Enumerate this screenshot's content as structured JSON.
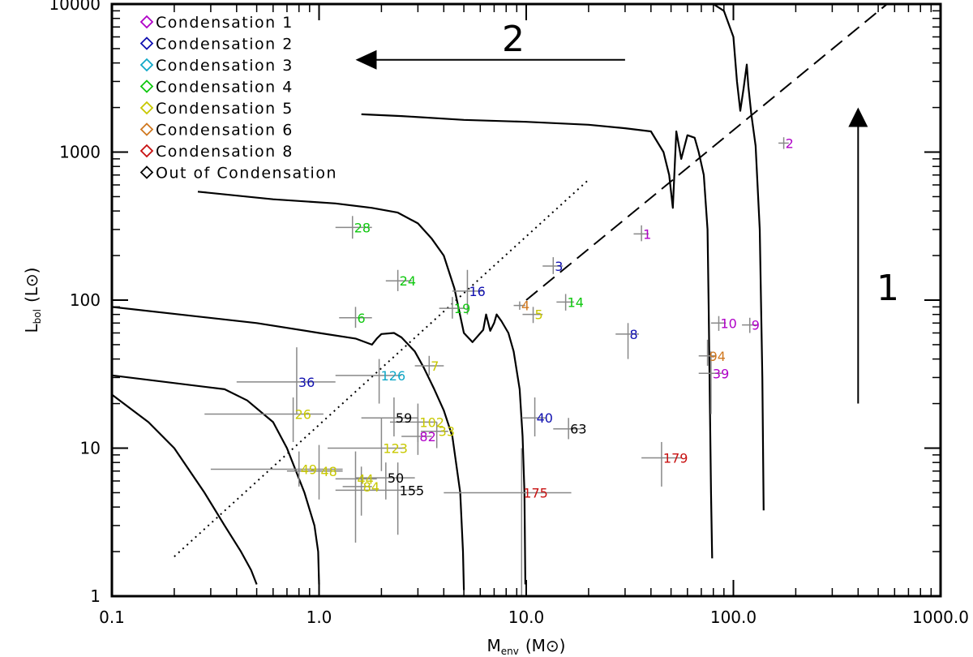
{
  "chart_data": {
    "type": "scatter",
    "title": "",
    "xlabel": {
      "main": "M",
      "sub": "env",
      "unit": "(M⊙)"
    },
    "ylabel": {
      "main": "L",
      "sub": "bol",
      "unit": "(L⊙)"
    },
    "xscale": "log",
    "yscale": "log",
    "xlim": [
      0.1,
      1000
    ],
    "ylim": [
      1,
      10000
    ],
    "x_ticks": [
      {
        "v": 0.1,
        "label": "0.1"
      },
      {
        "v": 1,
        "label": "1.0"
      },
      {
        "v": 10,
        "label": "10.0"
      },
      {
        "v": 100,
        "label": "100.0"
      },
      {
        "v": 1000,
        "label": "1000.0"
      }
    ],
    "y_ticks": [
      {
        "v": 1,
        "label": "1"
      },
      {
        "v": 10,
        "label": "10"
      },
      {
        "v": 100,
        "label": "100"
      },
      {
        "v": 1000,
        "label": "1000"
      },
      {
        "v": 10000,
        "label": "10000"
      }
    ],
    "legend_position": "top-left",
    "legend": [
      {
        "label": "Condensation 1",
        "color": "#b000c8"
      },
      {
        "label": "Condensation 2",
        "color": "#1010b0"
      },
      {
        "label": "Condensation 3",
        "color": "#10a8c8"
      },
      {
        "label": "Condensation 4",
        "color": "#10c810"
      },
      {
        "label": "Condensation 5",
        "color": "#c8c800"
      },
      {
        "label": "Condensation 6",
        "color": "#d07820"
      },
      {
        "label": "Condensation 8",
        "color": "#c81010"
      },
      {
        "label": "Out of Condensation",
        "color": "#000000"
      }
    ],
    "error_bar_color": "#888888",
    "points": [
      {
        "id": "2",
        "group": 0,
        "x": 175,
        "y": 1150,
        "xerr": [
          165,
          185
        ],
        "yerr": [
          1050,
          1260
        ]
      },
      {
        "id": "1",
        "group": 0,
        "x": 36,
        "y": 280,
        "xerr": [
          33,
          39
        ],
        "yerr": [
          250,
          320
        ]
      },
      {
        "id": "10",
        "group": 0,
        "x": 85,
        "y": 70,
        "xerr": [
          78,
          92
        ],
        "yerr": [
          62,
          78
        ]
      },
      {
        "id": "9",
        "group": 0,
        "x": 120,
        "y": 68,
        "xerr": [
          110,
          130
        ],
        "yerr": [
          60,
          76
        ]
      },
      {
        "id": "39",
        "group": 0,
        "x": 78,
        "y": 32,
        "xerr": [
          68,
          88
        ],
        "yerr": [
          17,
          45
        ]
      },
      {
        "id": "82",
        "group": 0,
        "x": 3.0,
        "y": 12,
        "xerr": [
          2.5,
          3.5
        ],
        "yerr": [
          9,
          16
        ]
      },
      {
        "id": "3",
        "group": 1,
        "x": 13.5,
        "y": 170,
        "xerr": [
          12,
          15
        ],
        "yerr": [
          150,
          195
        ]
      },
      {
        "id": "16",
        "group": 1,
        "x": 5.2,
        "y": 115,
        "xerr": [
          4.4,
          6.2
        ],
        "yerr": [
          80,
          160
        ]
      },
      {
        "id": "8",
        "group": 1,
        "x": 31,
        "y": 59,
        "xerr": [
          27,
          35
        ],
        "yerr": [
          40,
          70
        ]
      },
      {
        "id": "36",
        "group": 1,
        "x": 0.78,
        "y": 28,
        "xerr": [
          0.4,
          1.2
        ],
        "yerr": [
          17,
          48
        ]
      },
      {
        "id": "40",
        "group": 1,
        "x": 11,
        "y": 16,
        "xerr": [
          9.5,
          12.5
        ],
        "yerr": [
          12,
          22
        ]
      },
      {
        "id": "126",
        "group": 2,
        "x": 1.95,
        "y": 31,
        "xerr": [
          1.2,
          2.5
        ],
        "yerr": [
          20,
          40
        ]
      },
      {
        "id": "28",
        "group": 3,
        "x": 1.45,
        "y": 310,
        "xerr": [
          1.2,
          1.8
        ],
        "yerr": [
          260,
          370
        ]
      },
      {
        "id": "24",
        "group": 3,
        "x": 2.4,
        "y": 135,
        "xerr": [
          2.1,
          2.8
        ],
        "yerr": [
          115,
          160
        ]
      },
      {
        "id": "6",
        "group": 3,
        "x": 1.5,
        "y": 76,
        "xerr": [
          1.25,
          1.8
        ],
        "yerr": [
          65,
          90
        ]
      },
      {
        "id": "19",
        "group": 3,
        "x": 4.4,
        "y": 88,
        "xerr": [
          3.8,
          5.0
        ],
        "yerr": [
          75,
          105
        ]
      },
      {
        "id": "14",
        "group": 3,
        "x": 15.5,
        "y": 97,
        "xerr": [
          14,
          17
        ],
        "yerr": [
          85,
          110
        ]
      },
      {
        "id": "5",
        "group": 4,
        "x": 10.8,
        "y": 80,
        "xerr": [
          9.6,
          12
        ],
        "yerr": [
          70,
          90
        ]
      },
      {
        "id": "7",
        "group": 4,
        "x": 3.4,
        "y": 36,
        "xerr": [
          2.9,
          4.0
        ],
        "yerr": [
          31,
          42
        ]
      },
      {
        "id": "26",
        "group": 4,
        "x": 0.75,
        "y": 17,
        "xerr": [
          0.28,
          1.05
        ],
        "yerr": [
          11,
          22
        ]
      },
      {
        "id": "102",
        "group": 4,
        "x": 3.0,
        "y": 15,
        "xerr": [
          2.2,
          3.7
        ],
        "yerr": [
          11,
          20
        ]
      },
      {
        "id": "33",
        "group": 4,
        "x": 3.7,
        "y": 13,
        "xerr": [
          3.1,
          4.2
        ],
        "yerr": [
          10,
          15
        ]
      },
      {
        "id": "123",
        "group": 4,
        "x": 2.0,
        "y": 10,
        "xerr": [
          1.1,
          2.6
        ],
        "yerr": [
          7,
          16
        ]
      },
      {
        "id": "49",
        "group": 4,
        "x": 0.8,
        "y": 7.2,
        "xerr": [
          0.3,
          1.3
        ],
        "yerr": [
          5.5,
          9.5
        ]
      },
      {
        "id": "48",
        "group": 4,
        "x": 1.0,
        "y": 7.0,
        "xerr": [
          0.7,
          1.3
        ],
        "yerr": [
          4.5,
          10.5
        ]
      },
      {
        "id": "44",
        "group": 4,
        "x": 1.5,
        "y": 6.2,
        "xerr": [
          1.2,
          1.9
        ],
        "yerr": [
          2.3,
          9.5
        ]
      },
      {
        "id": "84",
        "group": 4,
        "x": 1.6,
        "y": 5.5,
        "xerr": [
          1.3,
          1.8
        ],
        "yerr": [
          3.5,
          7.5
        ]
      },
      {
        "id": "4",
        "group": 5,
        "x": 9.3,
        "y": 92,
        "xerr": [
          8.7,
          9.9
        ],
        "yerr": [
          86,
          98
        ]
      },
      {
        "id": "94",
        "group": 5,
        "x": 75,
        "y": 42,
        "xerr": [
          68,
          82
        ],
        "yerr": [
          36,
          54
        ]
      },
      {
        "id": "179",
        "group": 6,
        "x": 45,
        "y": 8.6,
        "xerr": [
          36,
          56
        ],
        "yerr": [
          5.5,
          11
        ]
      },
      {
        "id": "175",
        "group": 6,
        "x": 9.5,
        "y": 5.0,
        "xerr": [
          4.0,
          16.5
        ],
        "yerr": [
          1,
          10
        ]
      },
      {
        "id": "59",
        "group": 7,
        "x": 2.3,
        "y": 16,
        "xerr": [
          1.6,
          3.0
        ],
        "yerr": [
          12,
          22
        ]
      },
      {
        "id": "63",
        "group": 7,
        "x": 16,
        "y": 13.5,
        "xerr": [
          13.5,
          18.5
        ],
        "yerr": [
          11.5,
          16
        ]
      },
      {
        "id": "50",
        "group": 7,
        "x": 2.1,
        "y": 6.3,
        "xerr": [
          1.5,
          2.9
        ],
        "yerr": [
          4.5,
          8
        ]
      },
      {
        "id": "155",
        "group": 7,
        "x": 2.4,
        "y": 5.2,
        "xerr": [
          1.2,
          3.0
        ],
        "yerr": [
          2.6,
          8
        ]
      }
    ],
    "curves": [
      [
        [
          0.5,
          1.2
        ],
        [
          0.47,
          1.5
        ],
        [
          0.42,
          2
        ],
        [
          0.35,
          3
        ],
        [
          0.28,
          5
        ],
        [
          0.2,
          10
        ],
        [
          0.15,
          15
        ],
        [
          0.1,
          23
        ]
      ],
      [
        [
          1.0,
          1.2
        ],
        [
          0.99,
          2
        ],
        [
          0.95,
          3
        ],
        [
          0.85,
          5
        ],
        [
          0.7,
          10
        ],
        [
          0.6,
          15
        ],
        [
          0.45,
          21
        ],
        [
          0.35,
          25
        ],
        [
          0.1,
          31
        ]
      ],
      [
        [
          5.0,
          1.1
        ],
        [
          4.95,
          2
        ],
        [
          4.8,
          5
        ],
        [
          4.4,
          12
        ],
        [
          4.0,
          18
        ],
        [
          3.6,
          25
        ],
        [
          3.2,
          35
        ],
        [
          2.9,
          45
        ],
        [
          2.5,
          56
        ],
        [
          2.3,
          60
        ],
        [
          2.0,
          59
        ],
        [
          1.9,
          55
        ],
        [
          1.8,
          50
        ],
        [
          1.5,
          55
        ],
        [
          1.0,
          60
        ],
        [
          0.5,
          70
        ],
        [
          0.1,
          90
        ]
      ],
      [
        [
          9.9,
          1.2
        ],
        [
          9.8,
          5
        ],
        [
          9.6,
          12
        ],
        [
          9.3,
          25
        ],
        [
          8.7,
          45
        ],
        [
          8.2,
          60
        ],
        [
          7.6,
          72
        ],
        [
          7.2,
          80
        ],
        [
          7.0,
          70
        ],
        [
          6.7,
          62
        ],
        [
          6.4,
          80
        ],
        [
          6.2,
          63
        ],
        [
          5.5,
          52
        ],
        [
          5.0,
          60
        ],
        [
          4.5,
          120
        ],
        [
          4.0,
          200
        ],
        [
          3.5,
          260
        ],
        [
          3.0,
          330
        ],
        [
          2.4,
          390
        ],
        [
          1.8,
          420
        ],
        [
          1.2,
          450
        ],
        [
          0.6,
          480
        ],
        [
          0.26,
          540
        ]
      ],
      [
        [
          79,
          1.8
        ],
        [
          78,
          5
        ],
        [
          77,
          20
        ],
        [
          76,
          90
        ],
        [
          75,
          300
        ],
        [
          72,
          700
        ],
        [
          68,
          1000
        ],
        [
          65,
          1250
        ],
        [
          60,
          1300
        ],
        [
          56,
          900
        ],
        [
          53,
          1380
        ],
        [
          51,
          420
        ],
        [
          49,
          700
        ],
        [
          46,
          1000
        ],
        [
          40,
          1380
        ],
        [
          30,
          1450
        ],
        [
          20,
          1530
        ],
        [
          10,
          1600
        ],
        [
          5,
          1650
        ],
        [
          2.5,
          1750
        ],
        [
          1.6,
          1800
        ]
      ],
      [
        [
          140,
          3.8
        ],
        [
          138,
          30
        ],
        [
          134,
          300
        ],
        [
          128,
          1100
        ],
        [
          122,
          1800
        ],
        [
          118,
          2800
        ],
        [
          116,
          3900
        ],
        [
          112,
          2700
        ],
        [
          108,
          1900
        ],
        [
          104,
          3000
        ],
        [
          100,
          6000
        ],
        [
          90,
          9000
        ],
        [
          80,
          10000
        ],
        [
          60,
          10800
        ],
        [
          40,
          11000
        ],
        [
          25,
          11500
        ]
      ]
    ],
    "dashed_line": [
      [
        10,
        100
      ],
      [
        600,
        11000
      ]
    ],
    "dotted_line": [
      [
        0.2,
        1.85
      ],
      [
        20,
        650
      ]
    ],
    "annotations": {
      "arrow_1": {
        "label": "1",
        "x": 400,
        "y_from": 20,
        "y_to": 2000
      },
      "arrow_2": {
        "label": "2",
        "y": 4200,
        "x_from": 30,
        "x_to": 1.5
      }
    }
  }
}
